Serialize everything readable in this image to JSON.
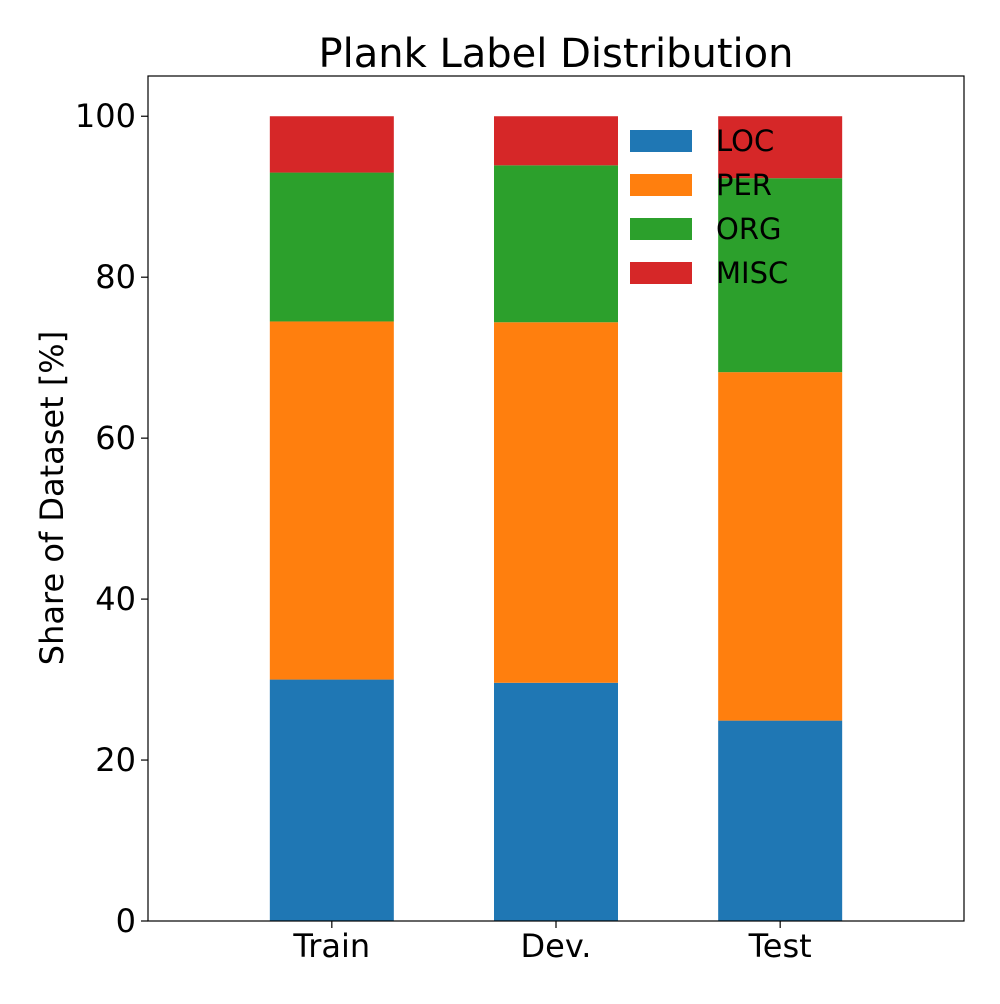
{
  "chart_data": {
    "type": "bar",
    "stacked": true,
    "title": "Plank Label Distribution",
    "xlabel": "",
    "ylabel": "Share of Dataset [%]",
    "categories": [
      "Train",
      "Dev.",
      "Test"
    ],
    "ylim": [
      0,
      105
    ],
    "yticks": [
      0,
      20,
      40,
      60,
      80,
      100
    ],
    "grid": false,
    "legend_position": "top-right",
    "series": [
      {
        "name": "LOC",
        "color": "#1f77b4",
        "values": [
          30.0,
          29.6,
          24.9
        ]
      },
      {
        "name": "PER",
        "color": "#ff7f0e",
        "values": [
          44.5,
          44.8,
          43.3
        ]
      },
      {
        "name": "ORG",
        "color": "#2ca02c",
        "values": [
          18.5,
          19.5,
          24.1
        ]
      },
      {
        "name": "MISC",
        "color": "#d62728",
        "values": [
          7.0,
          6.1,
          7.7
        ]
      }
    ]
  }
}
